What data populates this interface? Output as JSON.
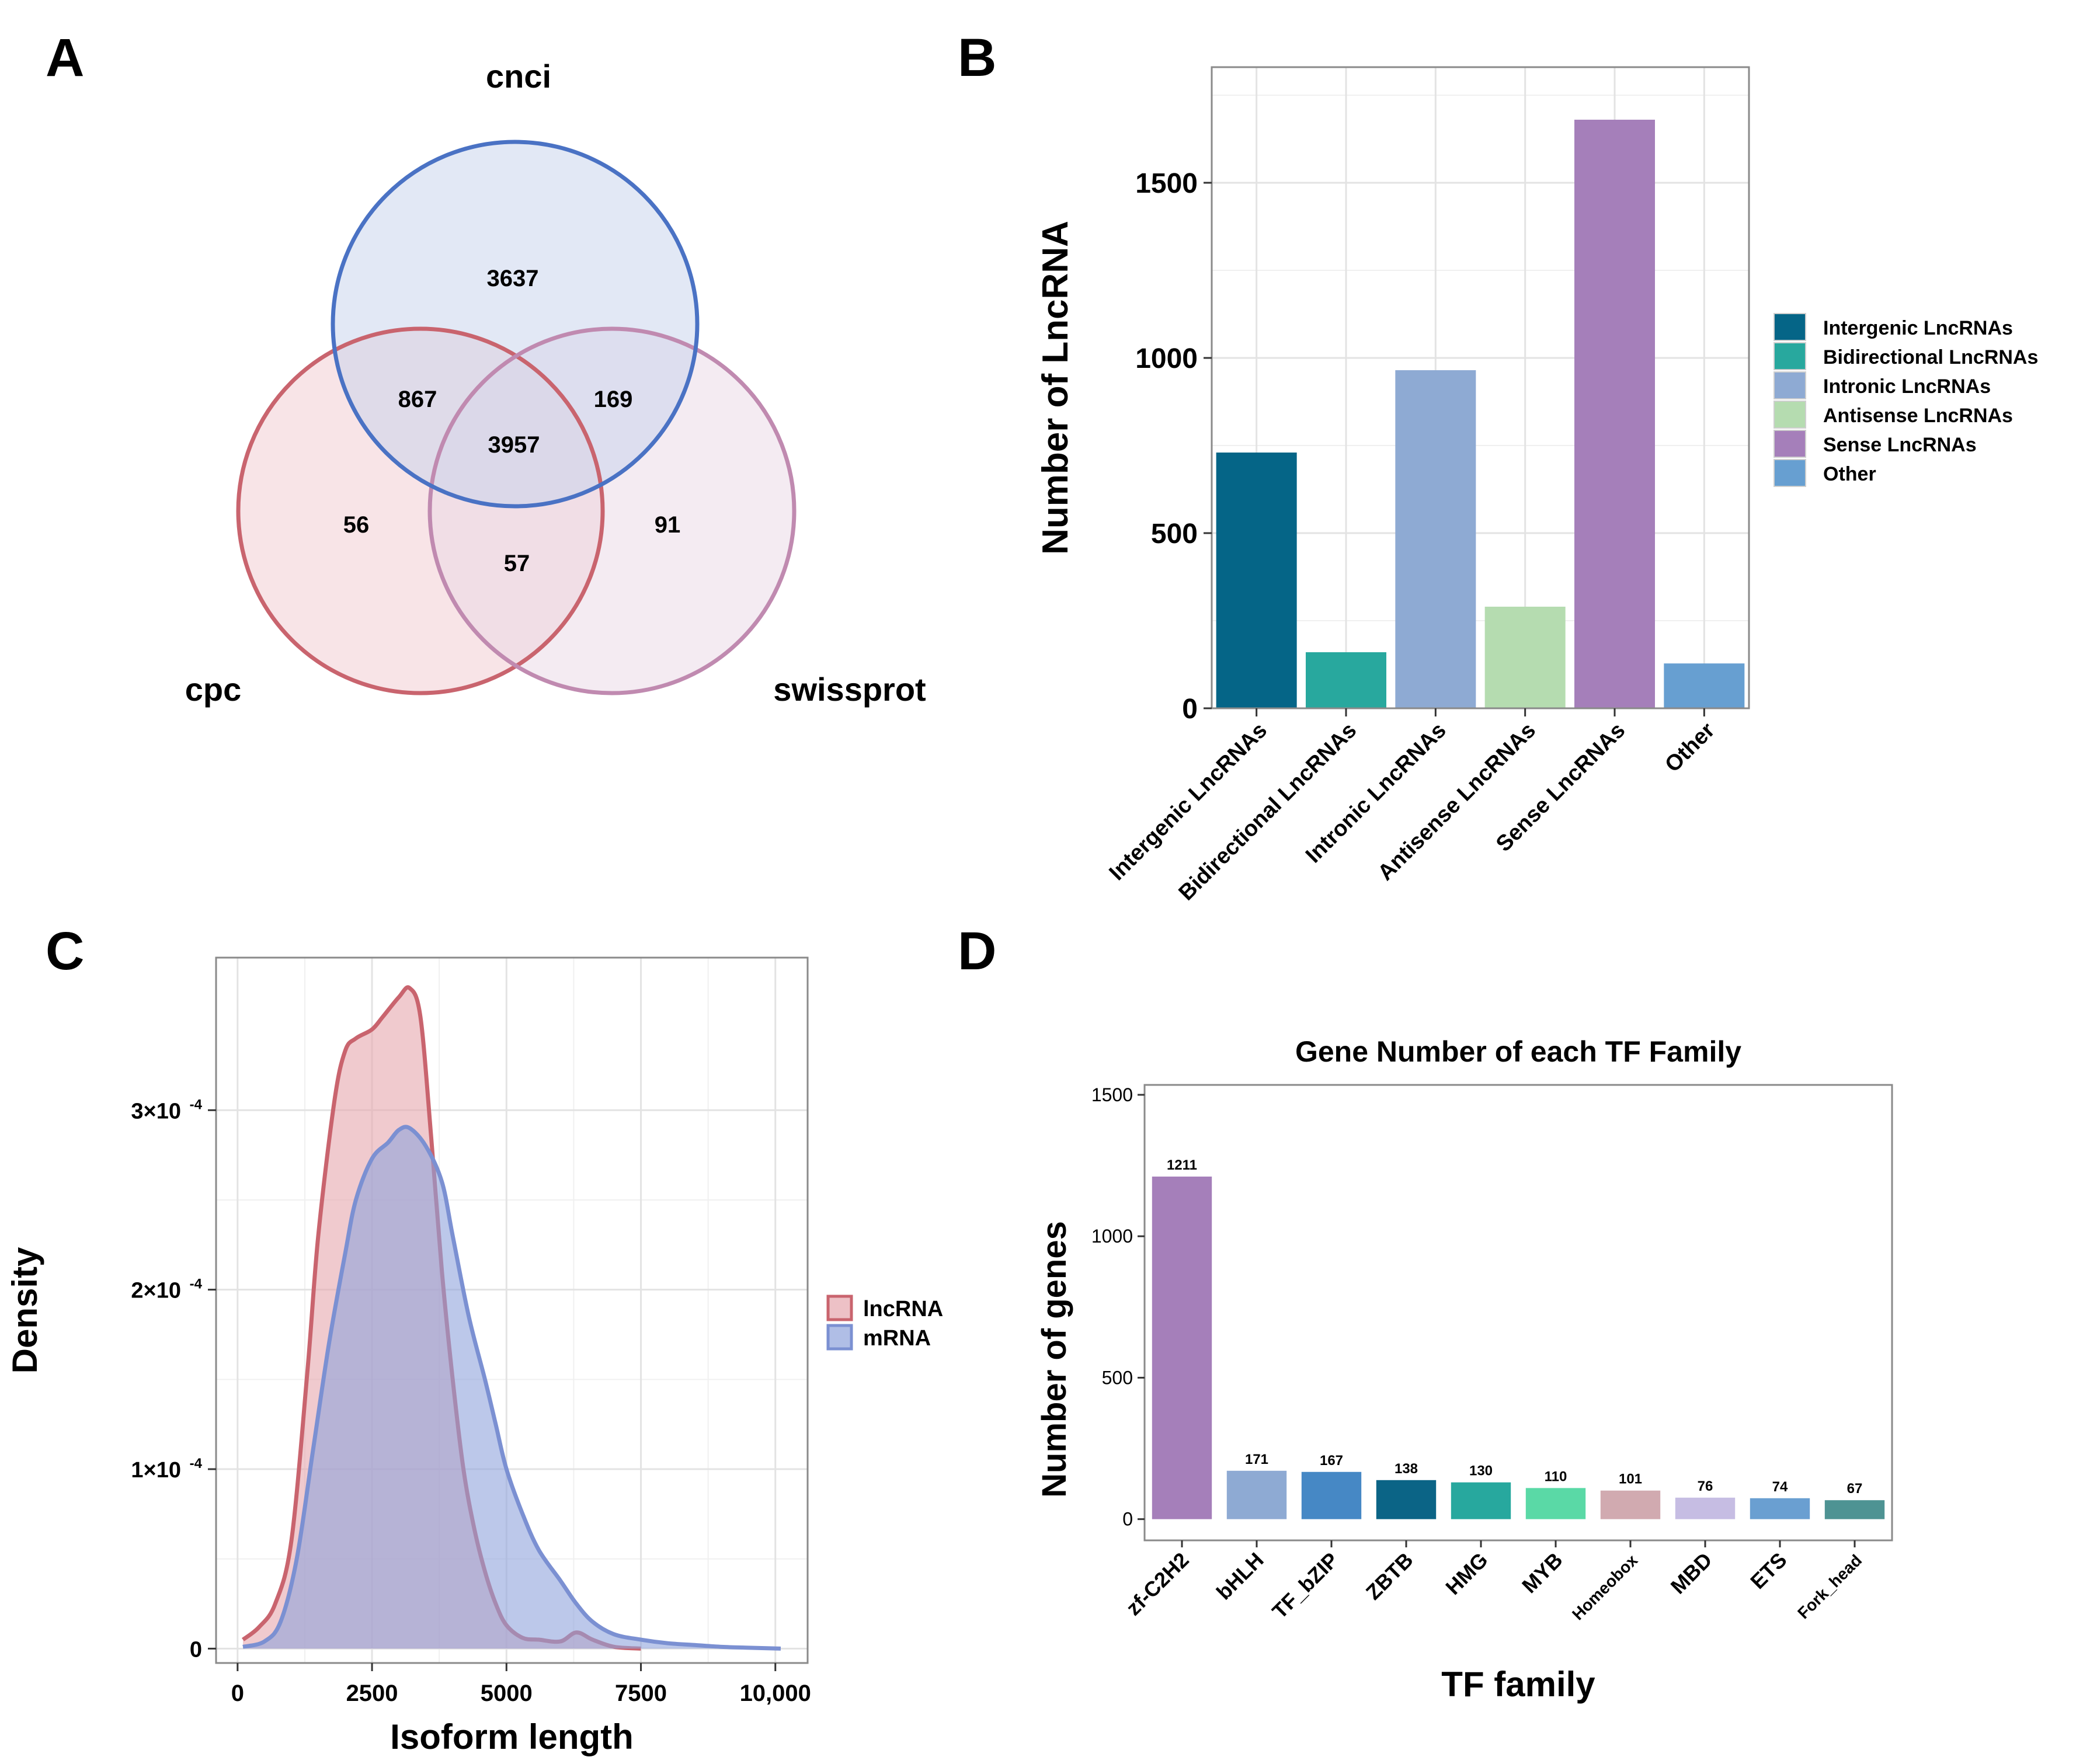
{
  "panels": {
    "A": "A",
    "B": "B",
    "C": "C",
    "D": "D"
  },
  "chart_data": [
    {
      "type": "venn",
      "panel": "A",
      "sets": [
        {
          "name": "cnci",
          "color": "#4a72c4",
          "fill": "#c6d2ec"
        },
        {
          "name": "cpc",
          "color": "#c9646e",
          "fill": "#f1c9cf"
        },
        {
          "name": "swissprot",
          "color": "#c08ab0",
          "fill": "#ead8e6"
        }
      ],
      "regions": [
        {
          "sets": [
            "cnci"
          ],
          "value": 3637
        },
        {
          "sets": [
            "cpc"
          ],
          "value": 56
        },
        {
          "sets": [
            "swissprot"
          ],
          "value": 91
        },
        {
          "sets": [
            "cnci",
            "cpc"
          ],
          "value": 867
        },
        {
          "sets": [
            "cnci",
            "swissprot"
          ],
          "value": 169
        },
        {
          "sets": [
            "cpc",
            "swissprot"
          ],
          "value": 57
        },
        {
          "sets": [
            "cnci",
            "cpc",
            "swissprot"
          ],
          "value": 3957
        }
      ]
    },
    {
      "type": "bar",
      "panel": "B",
      "categories": [
        "Intergenic LncRNAs",
        "Bidirectional LncRNAs",
        "Intronic LncRNAs",
        "Antisense LncRNAs",
        "Sense LncRNAs",
        "Other"
      ],
      "values": [
        730,
        160,
        965,
        290,
        1680,
        128
      ],
      "colors": [
        "#056587",
        "#28a89e",
        "#8eaad3",
        "#b5dcb0",
        "#a57fba",
        "#679fd1"
      ],
      "xlabel": "",
      "ylabel": "Number of LncRNA",
      "ylim": [
        0,
        1830
      ],
      "yticks": [
        0,
        500,
        1000,
        1500
      ],
      "legend": [
        "Intergenic LncRNAs",
        "Bidirectional LncRNAs",
        "Intronic LncRNAs",
        "Antisense LncRNAs",
        "Sense LncRNAs",
        "Other"
      ],
      "legend_position": "right",
      "grid": true
    },
    {
      "type": "area",
      "panel": "C",
      "xlabel": "Isoform length",
      "ylabel": "Density",
      "xlim": [
        -400,
        10600
      ],
      "ylim": [
        -8e-06,
        0.000385
      ],
      "xticks": [
        0,
        2500,
        5000,
        7500,
        10000
      ],
      "xtick_labels": [
        "0",
        "2500",
        "5000",
        "7500",
        "10,000"
      ],
      "yticks": [
        0,
        0.0001,
        0.0002,
        0.0003
      ],
      "ytick_labels": [
        {
          "base": "0",
          "exp": ""
        },
        {
          "base": "1×10",
          "exp": "-4"
        },
        {
          "base": "2×10",
          "exp": "-4"
        },
        {
          "base": "3×10",
          "exp": "-4"
        }
      ],
      "legend_position": "right",
      "grid": true,
      "series": [
        {
          "name": "lncRNA",
          "color": "#c9646e",
          "fill": "#e6a7ae",
          "x": [
            100,
            400,
            700,
            1000,
            1300,
            1500,
            1800,
            2000,
            2200,
            2500,
            2700,
            3000,
            3200,
            3400,
            3600,
            3800,
            4000,
            4200,
            4400,
            4600,
            4800,
            5000,
            5300,
            5600,
            6000,
            6300,
            6600,
            7000,
            7500
          ],
          "y": [
            5e-06,
            1.2e-05,
            2.5e-05,
            6e-05,
            0.000155,
            0.00023,
            0.000305,
            0.000333,
            0.00034,
            0.000345,
            0.000352,
            0.000363,
            0.000368,
            0.000352,
            0.000285,
            0.00021,
            0.00015,
            0.0001,
            6.7e-05,
            4.3e-05,
            2.5e-05,
            1.3e-05,
            6e-06,
            5e-06,
            4e-06,
            9e-06,
            5e-06,
            1e-06,
            0
          ]
        },
        {
          "name": "mRNA",
          "color": "#7b90d2",
          "fill": "#8fa3dc",
          "x": [
            100,
            500,
            800,
            1100,
            1400,
            1700,
            2000,
            2200,
            2500,
            2800,
            3000,
            3200,
            3500,
            3800,
            4000,
            4300,
            4600,
            4800,
            5000,
            5300,
            5600,
            6000,
            6300,
            6600,
            7000,
            7500,
            8000,
            8500,
            9000,
            9500,
            10100
          ],
          "y": [
            1e-06,
            4e-06,
            1.5e-05,
            5e-05,
            0.00011,
            0.00017,
            0.00022,
            0.00025,
            0.000273,
            0.000282,
            0.000289,
            0.00029,
            0.00028,
            0.00026,
            0.00023,
            0.000185,
            0.00015,
            0.000125,
            0.0001,
            7.5e-05,
            5.5e-05,
            3.8e-05,
            2.5e-05,
            1.5e-05,
            8e-06,
            5e-06,
            3e-06,
            2e-06,
            1e-06,
            5e-07,
            0
          ]
        }
      ]
    },
    {
      "type": "bar",
      "panel": "D",
      "title": "Gene Number of each TF Family",
      "categories": [
        "zf-C2H2",
        "bHLH",
        "TF_bZIP",
        "ZBTB",
        "HMG",
        "MYB",
        "Homeobox",
        "MBD",
        "ETS",
        "Fork_head"
      ],
      "values": [
        1211,
        171,
        167,
        138,
        130,
        110,
        101,
        76,
        74,
        67
      ],
      "colors": [
        "#a57fba",
        "#8eaad3",
        "#4688c5",
        "#0b6486",
        "#27a89e",
        "#5ad9a6",
        "#d1aab0",
        "#c6bde3",
        "#6a9fd1",
        "#4e9393"
      ],
      "xlabel": "TF family",
      "ylabel": "Number of genes",
      "ylim": [
        -75,
        1535
      ],
      "yticks": [
        0,
        500,
        1000,
        1500
      ],
      "grid": false
    }
  ]
}
